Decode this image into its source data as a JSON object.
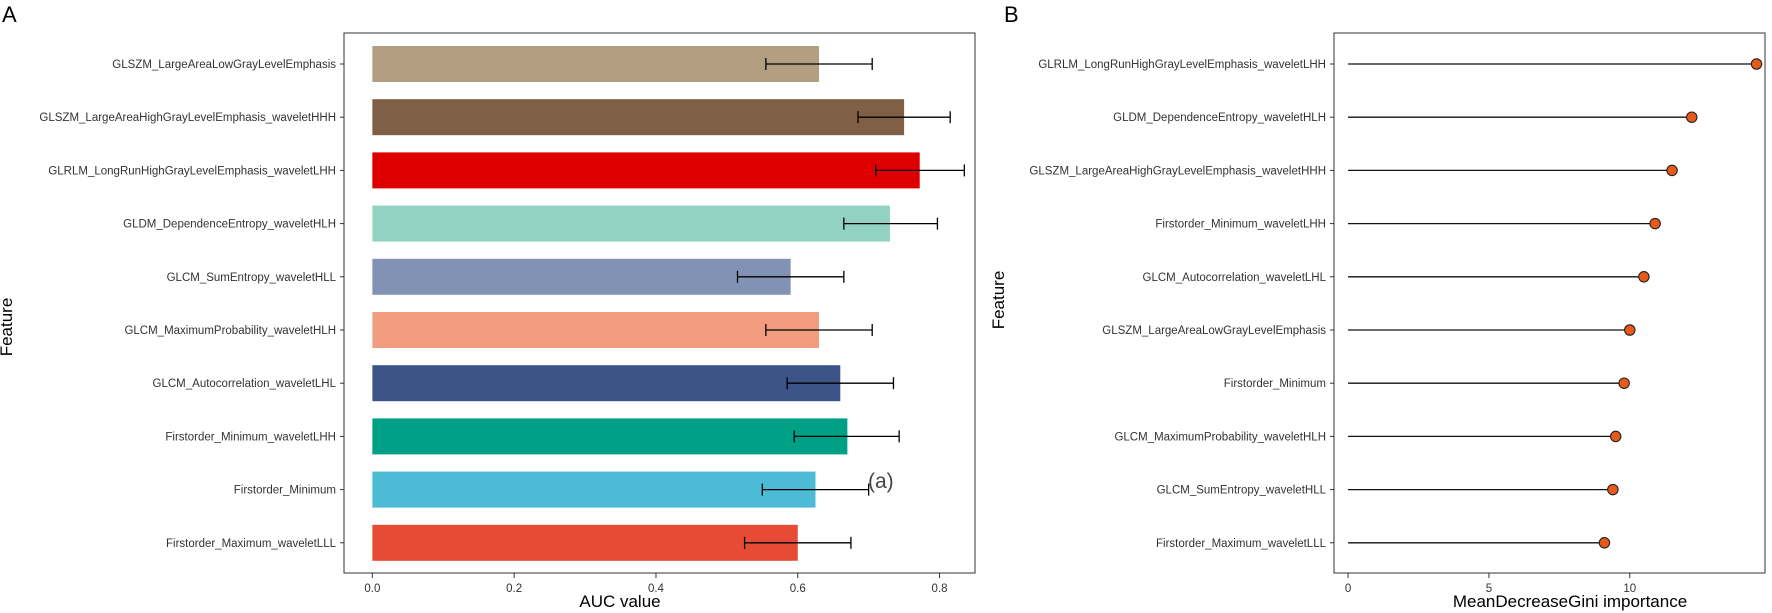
{
  "panel_labels": {
    "a": "A",
    "b": "B"
  },
  "annotation": "(a)",
  "chart_data": [
    {
      "type": "bar",
      "orientation": "horizontal",
      "panel": "A",
      "xlabel": "AUC value",
      "ylabel": "Feature",
      "xlim": [
        -0.04,
        0.85
      ],
      "xticks": [
        0.0,
        0.2,
        0.4,
        0.6,
        0.8
      ],
      "xtick_labels": [
        "0.0",
        "0.2",
        "0.4",
        "0.6",
        "0.8"
      ],
      "categories": [
        "GLSZM_LargeAreaLowGrayLevelEmphasis",
        "GLSZM_LargeAreaHighGrayLevelEmphasis_waveletHHH",
        "GLRLM_LongRunHighGrayLevelEmphasis_waveletLHH",
        "GLDM_DependenceEntropy_waveletHLH",
        "GLCM_SumEntropy_waveletHLL",
        "GLCM_MaximumProbability_waveletHLH",
        "GLCM_Autocorrelation_waveletLHL",
        "Firstorder_Minimum_waveletLHH",
        "Firstorder_Minimum",
        "Firstorder_Maximum_waveletLLL"
      ],
      "values": [
        0.63,
        0.75,
        0.772,
        0.73,
        0.59,
        0.63,
        0.66,
        0.67,
        0.625,
        0.6
      ],
      "error_low": [
        0.555,
        0.685,
        0.71,
        0.665,
        0.515,
        0.555,
        0.585,
        0.595,
        0.55,
        0.525
      ],
      "error_high": [
        0.705,
        0.815,
        0.835,
        0.797,
        0.665,
        0.705,
        0.735,
        0.743,
        0.7,
        0.675
      ],
      "colors": [
        "#b39e82",
        "#7f5f45",
        "#de0000",
        "#92d2c2",
        "#8292b5",
        "#f29c80",
        "#3d5489",
        "#00a087",
        "#4dbbd6",
        "#e64b35"
      ]
    },
    {
      "type": "lollipop",
      "panel": "B",
      "xlabel": "MeanDecreaseGini importance",
      "ylabel": "Feature",
      "xlim": [
        -0.5,
        14.8
      ],
      "xticks": [
        0,
        5,
        10
      ],
      "xtick_labels": [
        "0",
        "5",
        "10"
      ],
      "categories": [
        "GLRLM_LongRunHighGrayLevelEmphasis_waveletLHH",
        "GLDM_DependenceEntropy_waveletHLH",
        "GLSZM_LargeAreaHighGrayLevelEmphasis_waveletHHH",
        "Firstorder_Minimum_waveletLHH",
        "GLCM_Autocorrelation_waveletLHL",
        "GLSZM_LargeAreaLowGrayLevelEmphasis",
        "Firstorder_Minimum",
        "GLCM_MaximumProbability_waveletHLH",
        "GLCM_SumEntropy_waveletHLL",
        "Firstorder_Maximum_waveletLLL"
      ],
      "values": [
        14.5,
        12.2,
        11.5,
        10.9,
        10.5,
        10.0,
        9.8,
        9.5,
        9.4,
        9.1
      ],
      "point_color": "#e85a1a"
    }
  ]
}
